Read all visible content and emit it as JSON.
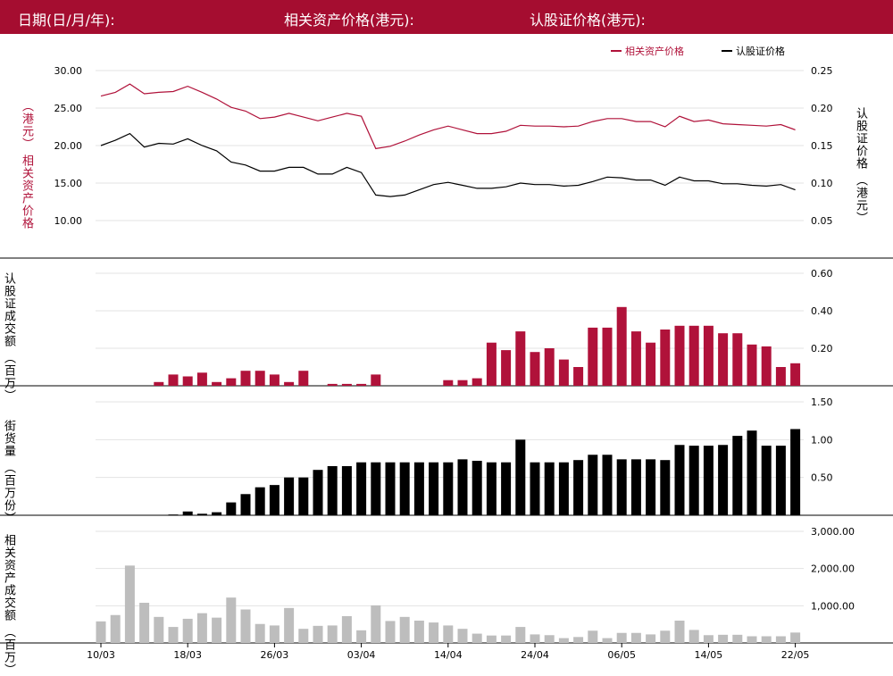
{
  "header": {
    "date_label": "日期(日/月/年):",
    "asset_price_label": "相关资产价格(港元):",
    "warrant_price_label": "认股证价格(港元):"
  },
  "colors": {
    "header_bg": "#a50d30",
    "asset": "#b0123a",
    "warrant": "#000000",
    "asset_turnover": "#bdbdbd"
  },
  "chart_data": [
    {
      "type": "line",
      "legend": {
        "placement": "top-right",
        "items": [
          "相关资产价格",
          "认股证价格"
        ]
      },
      "left_axis_label": [
        "（港元）",
        "相关资产价格"
      ],
      "right_axis_label": [
        "认股证价格",
        "（港元）"
      ],
      "left_ticks": [
        "30.00",
        "25.00",
        "20.00",
        "15.00",
        "10.00"
      ],
      "right_ticks": [
        "0.25",
        "0.20",
        "0.15",
        "0.10",
        "0.05"
      ],
      "left_range": [
        5,
        30
      ],
      "right_range": [
        0,
        0.25
      ],
      "grid": true,
      "series": [
        {
          "name": "相关资产价格",
          "axis": "left",
          "values": [
            26.6,
            27.1,
            28.2,
            26.9,
            27.1,
            27.2,
            27.9,
            27.1,
            26.2,
            25.1,
            24.6,
            23.6,
            23.8,
            24.3,
            23.8,
            23.3,
            23.8,
            24.3,
            23.9,
            19.6,
            19.9,
            20.6,
            21.4,
            22.1,
            22.6,
            22.1,
            21.6,
            21.6,
            21.9,
            22.7,
            22.6,
            22.6,
            22.5,
            22.6,
            23.2,
            23.6,
            23.6,
            23.2,
            23.2,
            22.5,
            23.9,
            23.2,
            23.4,
            22.9,
            22.8,
            22.7,
            22.6,
            22.8,
            22.1
          ]
        },
        {
          "name": "认股证价格",
          "axis": "right",
          "values": [
            0.15,
            0.157,
            0.166,
            0.148,
            0.153,
            0.152,
            0.159,
            0.15,
            0.143,
            0.128,
            0.124,
            0.116,
            0.116,
            0.121,
            0.121,
            0.112,
            0.112,
            0.121,
            0.114,
            0.084,
            0.082,
            0.084,
            0.091,
            0.098,
            0.101,
            0.097,
            0.093,
            0.093,
            0.095,
            0.1,
            0.098,
            0.098,
            0.096,
            0.097,
            0.102,
            0.108,
            0.107,
            0.104,
            0.104,
            0.097,
            0.108,
            0.103,
            0.103,
            0.099,
            0.099,
            0.097,
            0.096,
            0.098,
            0.091
          ]
        }
      ]
    },
    {
      "type": "bar",
      "axis_label": [
        "认股证成交额",
        "（百万）"
      ],
      "right_ticks": [
        "0.60",
        "0.40",
        "0.20"
      ],
      "range": [
        0,
        0.6
      ],
      "grid": true,
      "values": [
        0,
        0,
        0,
        0,
        0.02,
        0.06,
        0.05,
        0.07,
        0.02,
        0.04,
        0.08,
        0.08,
        0.06,
        0.02,
        0.08,
        0,
        0.01,
        0.01,
        0.01,
        0.06,
        0,
        0,
        0,
        0,
        0.03,
        0.03,
        0.04,
        0.23,
        0.19,
        0.29,
        0.18,
        0.2,
        0.14,
        0.1,
        0.31,
        0.31,
        0.42,
        0.29,
        0.23,
        0.3,
        0.32,
        0.32,
        0.32,
        0.28,
        0.28,
        0.22,
        0.21,
        0.1,
        0.12
      ]
    },
    {
      "type": "bar",
      "axis_label": [
        "街货量",
        "（百万份）"
      ],
      "right_ticks": [
        "1.50",
        "1.00",
        "0.50"
      ],
      "range": [
        0,
        1.5
      ],
      "grid": true,
      "values": [
        0,
        0,
        0,
        0,
        0,
        0.01,
        0.05,
        0.02,
        0.04,
        0.17,
        0.28,
        0.37,
        0.4,
        0.5,
        0.5,
        0.6,
        0.65,
        0.65,
        0.7,
        0.7,
        0.7,
        0.7,
        0.7,
        0.7,
        0.7,
        0.74,
        0.72,
        0.7,
        0.7,
        1.0,
        0.7,
        0.7,
        0.7,
        0.73,
        0.8,
        0.8,
        0.74,
        0.74,
        0.74,
        0.73,
        0.93,
        0.92,
        0.92,
        0.93,
        1.05,
        1.12,
        0.92,
        0.92,
        1.14
      ]
    },
    {
      "type": "bar",
      "axis_label": [
        "相关资产成交额",
        "（百万）"
      ],
      "right_ticks": [
        "3,000.00",
        "2,000.00",
        "1,000.00"
      ],
      "range": [
        0,
        3000
      ],
      "grid": true,
      "x_ticks": [
        "10/03",
        "18/03",
        "26/03",
        "03/04",
        "14/04",
        "24/04",
        "06/05",
        "14/05",
        "22/05"
      ],
      "values": [
        580,
        750,
        2080,
        1080,
        700,
        430,
        650,
        800,
        680,
        1220,
        900,
        510,
        470,
        940,
        380,
        460,
        470,
        720,
        340,
        1010,
        590,
        700,
        600,
        550,
        470,
        380,
        250,
        200,
        200,
        430,
        230,
        210,
        130,
        160,
        330,
        130,
        270,
        270,
        230,
        330,
        600,
        350,
        210,
        220,
        220,
        180,
        180,
        180,
        280
      ]
    }
  ]
}
